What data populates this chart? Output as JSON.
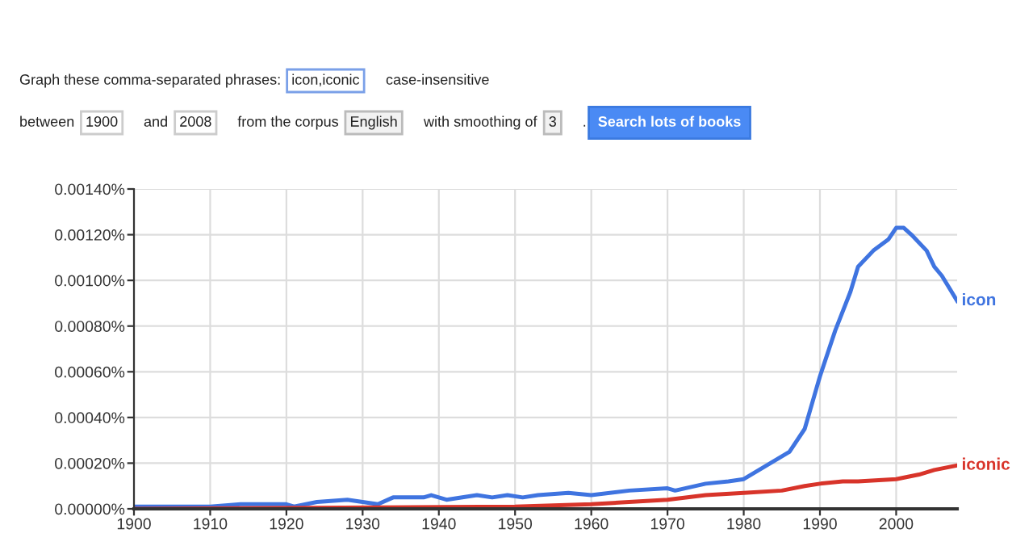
{
  "chart_data": {
    "type": "line",
    "annotations": [
      "Graph these comma-separated phrases:",
      "icon,iconic",
      "case-insensitive",
      "between",
      "1900",
      "and",
      "2008",
      "from the corpus",
      "English",
      "with smoothing of",
      "3",
      ".",
      "Search lots of books"
    ],
    "series": [
      {
        "name": "icon",
        "color": "#3f74e0",
        "x": [
          1900,
          1910,
          1914,
          1920,
          1921,
          1924,
          1928,
          1930,
          1932,
          1934,
          1938,
          1939,
          1941,
          1945,
          1947,
          1949,
          1951,
          1953,
          1957,
          1960,
          1965,
          1970,
          1971,
          1975,
          1978,
          1980,
          1982,
          1984,
          1986,
          1988,
          1990,
          1992,
          1994,
          1995,
          1997,
          1999,
          2000,
          2001,
          2002,
          2004,
          2005,
          2006,
          2008
        ],
        "values": [
          1e-05,
          1e-05,
          2e-05,
          2e-05,
          1e-05,
          3e-05,
          4e-05,
          3e-05,
          2e-05,
          5e-05,
          5e-05,
          6e-05,
          4e-05,
          6e-05,
          5e-05,
          6e-05,
          5e-05,
          6e-05,
          7e-05,
          6e-05,
          8e-05,
          9e-05,
          8e-05,
          0.00011,
          0.00012,
          0.00013,
          0.00017,
          0.00021,
          0.00025,
          0.00035,
          0.00058,
          0.00078,
          0.00095,
          0.00106,
          0.00113,
          0.00118,
          0.00123,
          0.00123,
          0.0012,
          0.00113,
          0.00106,
          0.00102,
          0.00091
        ]
      },
      {
        "name": "iconic",
        "color": "#d8342a",
        "x": [
          1900,
          1950,
          1960,
          1970,
          1975,
          1980,
          1985,
          1988,
          1990,
          1993,
          1995,
          2000,
          2003,
          2005,
          2008
        ],
        "values": [
          0,
          1e-05,
          2e-05,
          4e-05,
          6e-05,
          7e-05,
          8e-05,
          0.0001,
          0.00011,
          0.00012,
          0.00012,
          0.00013,
          0.00015,
          0.00017,
          0.00019
        ]
      }
    ],
    "xlim": [
      1900,
      2008
    ],
    "xticks": [
      1900,
      1910,
      1920,
      1930,
      1940,
      1950,
      1960,
      1970,
      1980,
      1990,
      2000
    ],
    "ylim": [
      0,
      0.0014
    ],
    "yticks": [
      {
        "value": 0,
        "label": "0.00000%"
      },
      {
        "value": 0.0002,
        "label": "0.00020%"
      },
      {
        "value": 0.0004,
        "label": "0.00040%"
      },
      {
        "value": 0.0006,
        "label": "0.00060%"
      },
      {
        "value": 0.0008,
        "label": "0.00080%"
      },
      {
        "value": 0.001,
        "label": "0.00100%"
      },
      {
        "value": 0.0012,
        "label": "0.00120%"
      },
      {
        "value": 0.0014,
        "label": "0.00140%"
      }
    ],
    "grid": true,
    "marker": "none",
    "line_style": "solid"
  }
}
